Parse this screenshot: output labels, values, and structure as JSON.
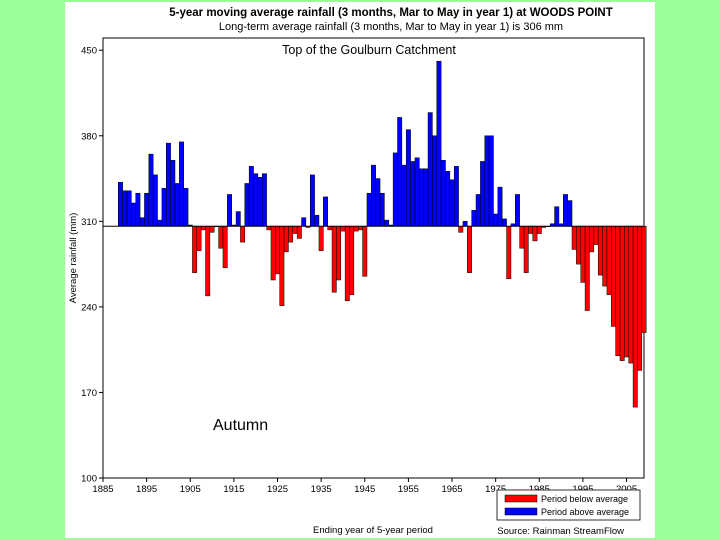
{
  "chart_data": {
    "type": "bar",
    "title": "5-year moving average rainfall (3 months, Mar to May in year 1) at WOODS POINT",
    "subtitle": "Long-term average rainfall (3 months, Mar to May in year 1) is 306 mm",
    "annotation_top": "Top of the Goulburn Catchment",
    "annotation_season": "Autumn",
    "xlabel": "Ending year of 5-year period",
    "ylabel": "Average rainfall (mm)",
    "source": "Source: Rainman StreamFlow",
    "baseline": 306,
    "ylim": [
      100,
      460
    ],
    "xlim": [
      1885,
      2009
    ],
    "y_ticks": [
      100,
      170,
      240,
      310,
      380,
      450
    ],
    "x_ticks": [
      1885,
      1895,
      1905,
      1915,
      1925,
      1935,
      1945,
      1955,
      1965,
      1975,
      1985,
      1995,
      2005
    ],
    "grid": false,
    "legend": {
      "placement": "bottom-right",
      "entries": [
        {
          "label": "Period below average",
          "color": "#ff0000"
        },
        {
          "label": "Period above average",
          "color": "#0000ff"
        }
      ]
    },
    "colors": {
      "below": "#ff0000",
      "above": "#0000ff"
    },
    "x": [
      1889,
      1890,
      1891,
      1892,
      1893,
      1894,
      1895,
      1896,
      1897,
      1898,
      1899,
      1900,
      1901,
      1902,
      1903,
      1904,
      1905,
      1906,
      1907,
      1908,
      1909,
      1910,
      1911,
      1912,
      1913,
      1914,
      1915,
      1916,
      1917,
      1918,
      1919,
      1920,
      1921,
      1922,
      1923,
      1924,
      1925,
      1926,
      1927,
      1928,
      1929,
      1930,
      1931,
      1932,
      1933,
      1934,
      1935,
      1936,
      1937,
      1938,
      1939,
      1940,
      1941,
      1942,
      1943,
      1944,
      1945,
      1946,
      1947,
      1948,
      1949,
      1950,
      1951,
      1952,
      1953,
      1954,
      1955,
      1956,
      1957,
      1958,
      1959,
      1960,
      1961,
      1962,
      1963,
      1964,
      1965,
      1966,
      1967,
      1968,
      1969,
      1970,
      1971,
      1972,
      1973,
      1974,
      1975,
      1976,
      1977,
      1978,
      1979,
      1980,
      1981,
      1982,
      1983,
      1984,
      1985,
      1986,
      1987,
      1988,
      1989,
      1990,
      1991,
      1992,
      1993,
      1994,
      1995,
      1996,
      1997,
      1998,
      1999,
      2000,
      2001,
      2002,
      2003,
      2004,
      2005,
      2006,
      2007,
      2008,
      2009
    ],
    "values": [
      342,
      335,
      335,
      325,
      333,
      313,
      333,
      365,
      348,
      311,
      337,
      374,
      360,
      341,
      375,
      337,
      307,
      268,
      286,
      303,
      249,
      301,
      306,
      288,
      272,
      332,
      307,
      318,
      293,
      341,
      355,
      349,
      346,
      349,
      303,
      262,
      267,
      241,
      285,
      293,
      300,
      296,
      313,
      305,
      348,
      315,
      286,
      330,
      303,
      252,
      262,
      302,
      245,
      250,
      302,
      303,
      265,
      333,
      356,
      345,
      333,
      311,
      307,
      366,
      395,
      356,
      385,
      359,
      362,
      353,
      353,
      399,
      380,
      441,
      360,
      351,
      344,
      355,
      301,
      310,
      268,
      319,
      332,
      359,
      380,
      380,
      316,
      338,
      312,
      263,
      308,
      332,
      288,
      268,
      300,
      294,
      300,
      305,
      306,
      308,
      322,
      308,
      332,
      327,
      287,
      275,
      260,
      237,
      285,
      291,
      266,
      257,
      250,
      224,
      200,
      196,
      199,
      194,
      158,
      188,
      219
    ]
  }
}
